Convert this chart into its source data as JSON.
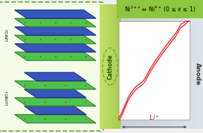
{
  "title_text_raw": "Ni$^{2+x}$ ⇔ Ni$^{4+}$ (0 ≤ x ≤ 1)",
  "cathode_label": "Cathode",
  "anode_label": "Anode",
  "li_label": "Li$^+$",
  "label_LiNiO2": "LiNiO$_2$",
  "label_Li2NiO2": "Li$_2$NiO$_2$",
  "bg_color": "#f0f0f0",
  "green_header_color": "#8dc63f",
  "left_box_bg": "#f5fce8",
  "left_box_border": "#6ab030",
  "anode_bg": "#c8d0d8",
  "anode_bg2": "#dde3e8",
  "plot_bg": "#ffffff",
  "curve_color": "#ee1111",
  "arrow_color": "#505050",
  "green_band_left": "#c5e068",
  "green_band_right": "#a8cc50",
  "layer_green": "#3dbb3d",
  "layer_blue": "#2244bb",
  "layer_red": "#cc2200",
  "figw": 2.89,
  "figh": 1.89,
  "dpi": 100
}
